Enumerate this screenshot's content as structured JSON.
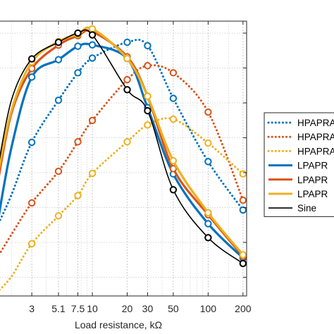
{
  "chart_data": {
    "type": "line",
    "xlabel": "Load resistance, kΩ",
    "ylabel": "",
    "xscale": "log",
    "xlim": [
      1.55,
      215
    ],
    "ylim": [
      0,
      1
    ],
    "x_ticks": [
      3,
      5.1,
      7.5,
      10,
      20,
      30,
      50,
      100,
      200
    ],
    "x_tick_labels": [
      "3",
      "5.1",
      "7.5",
      "10",
      "20",
      "30",
      "50",
      "100",
      "200"
    ],
    "grid": true,
    "legend_position": "right",
    "x": [
      1.5,
      2,
      3,
      5.1,
      7.5,
      10,
      20,
      30,
      50,
      100,
      200
    ],
    "series": [
      {
        "name": "HPAPRA",
        "color": "#0072BD",
        "style": "dotted",
        "values": [
          0.3,
          0.42,
          0.62,
          0.78,
          0.884,
          0.94,
          1.0,
          0.987,
          0.787,
          0.547,
          0.363
        ]
      },
      {
        "name": "HPAPRA",
        "color": "#D95319",
        "style": "dotted",
        "values": [
          0.18,
          0.27,
          0.39,
          0.51,
          0.622,
          0.703,
          0.858,
          0.911,
          0.884,
          0.735,
          0.4
        ]
      },
      {
        "name": "HPAPRA",
        "color": "#EDB120",
        "style": "dotted",
        "values": [
          0.05,
          0.11,
          0.235,
          0.341,
          0.418,
          0.502,
          0.622,
          0.686,
          0.708,
          0.617,
          0.5
        ]
      },
      {
        "name": "LPAPR",
        "color": "#0072BD",
        "style": "solid",
        "values": [
          0.3,
          0.6,
          0.868,
          0.934,
          0.985,
          0.99,
          0.938,
          0.752,
          0.5,
          0.311,
          0.181
        ]
      },
      {
        "name": "LPAPR",
        "color": "#D95319",
        "style": "solid",
        "values": [
          0.45,
          0.73,
          0.9,
          0.989,
          1.025,
          1.04,
          0.945,
          0.795,
          0.52,
          0.345,
          0.187
        ]
      },
      {
        "name": "LPAPR",
        "color": "#EDB120",
        "style": "solid",
        "values": [
          0.48,
          0.74,
          0.925,
          1.003,
          1.03,
          1.051,
          0.938,
          0.795,
          0.55,
          0.353,
          0.193
        ]
      },
      {
        "name": "Sine",
        "color": "#000000",
        "style": "solid",
        "values": [
          0.5,
          0.78,
          0.937,
          1.0,
          1.035,
          1.028,
          0.82,
          0.74,
          0.44,
          0.258,
          0.16
        ]
      }
    ]
  }
}
